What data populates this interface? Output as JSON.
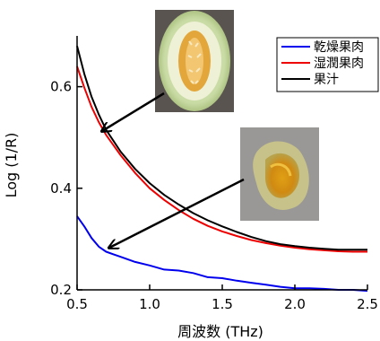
{
  "chart_data": {
    "type": "line",
    "xlabel": "周波数 (THz)",
    "ylabel": "Log (1/R)",
    "xlim": [
      0.5,
      2.5
    ],
    "ylim": [
      0.2,
      0.7
    ],
    "x_ticks": [
      "0.5",
      "1.0",
      "1.5",
      "2.0",
      "2.5"
    ],
    "y_ticks": [
      "0.2",
      "0.4",
      "0.6"
    ],
    "grid": false,
    "legend_position": "top-right",
    "series": [
      {
        "name": "乾燥果肉",
        "color": "#0000ee",
        "x": [
          0.5,
          0.55,
          0.6,
          0.65,
          0.7,
          0.8,
          0.9,
          1.0,
          1.1,
          1.2,
          1.3,
          1.4,
          1.5,
          1.6,
          1.7,
          1.8,
          1.9,
          2.0,
          2.1,
          2.2,
          2.3,
          2.4,
          2.5
        ],
        "y": [
          0.345,
          0.325,
          0.302,
          0.285,
          0.275,
          0.265,
          0.255,
          0.248,
          0.24,
          0.238,
          0.233,
          0.225,
          0.223,
          0.218,
          0.214,
          0.21,
          0.206,
          0.203,
          0.203,
          0.202,
          0.2,
          0.2,
          0.198
        ]
      },
      {
        "name": "湿潤果肉",
        "color": "#ee0000",
        "x": [
          0.5,
          0.55,
          0.6,
          0.65,
          0.7,
          0.8,
          0.9,
          1.0,
          1.1,
          1.2,
          1.3,
          1.4,
          1.5,
          1.6,
          1.7,
          1.8,
          1.9,
          2.0,
          2.1,
          2.2,
          2.3,
          2.4,
          2.5
        ],
        "y": [
          0.64,
          0.598,
          0.56,
          0.53,
          0.505,
          0.465,
          0.43,
          0.4,
          0.377,
          0.357,
          0.34,
          0.326,
          0.315,
          0.306,
          0.298,
          0.292,
          0.287,
          0.283,
          0.28,
          0.278,
          0.276,
          0.275,
          0.275
        ]
      },
      {
        "name": "果汁",
        "color": "#000000",
        "x": [
          0.5,
          0.55,
          0.6,
          0.65,
          0.7,
          0.8,
          0.9,
          1.0,
          1.1,
          1.2,
          1.3,
          1.4,
          1.5,
          1.6,
          1.7,
          1.8,
          1.9,
          2.0,
          2.1,
          2.2,
          2.3,
          2.4,
          2.5
        ],
        "y": [
          0.68,
          0.625,
          0.58,
          0.545,
          0.515,
          0.472,
          0.438,
          0.41,
          0.387,
          0.368,
          0.351,
          0.337,
          0.325,
          0.314,
          0.304,
          0.296,
          0.29,
          0.286,
          0.283,
          0.281,
          0.279,
          0.279,
          0.279
        ]
      }
    ]
  },
  "annotations": [
    {
      "icon": "melon-cross-section-photo"
    },
    {
      "icon": "dried-melon-flesh-photo"
    }
  ]
}
